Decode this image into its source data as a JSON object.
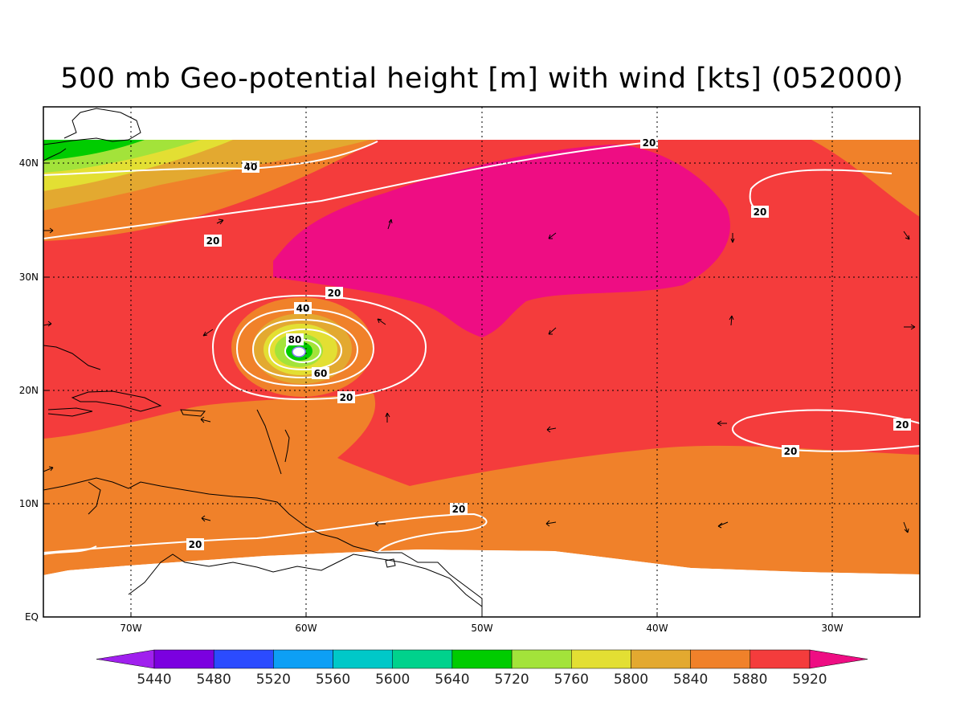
{
  "title": "500 mb Geo-potential height [m] with wind [kts] (052000)",
  "map": {
    "lon_range": [
      -75,
      -25
    ],
    "lat_range": [
      0,
      45
    ],
    "lon_ticks": [
      "70W",
      "60W",
      "50W",
      "40W",
      "30W"
    ],
    "lat_ticks": [
      "EQ",
      "10N",
      "20N",
      "30N",
      "40N"
    ],
    "shading_variable": "500 mb geopotential height",
    "contour_variable": "wind speed",
    "wind_contour_labels": [
      "20",
      "40",
      "20",
      "20",
      "20",
      "20",
      "20",
      "40",
      "80",
      "60",
      "20",
      "20",
      "20"
    ],
    "hurricane_center": "24N 60W",
    "colors": {
      "5920": "#ee0d83",
      "5880": "#f43c3c",
      "5840": "#f0812a",
      "5800": "#e3a930",
      "5760": "#e3df33",
      "5720": "#a3e33a",
      "5640": "#00cc00",
      "background": "#ffffff"
    }
  },
  "colorbar": {
    "labels": [
      "5440",
      "5480",
      "5520",
      "5560",
      "5600",
      "5640",
      "5720",
      "5760",
      "5800",
      "5840",
      "5880",
      "5920"
    ],
    "colors": [
      "#a020ee",
      "#7b00e0",
      "#2b4bff",
      "#0d9ff5",
      "#00c8c8",
      "#00d28c",
      "#00cc00",
      "#a3e33a",
      "#e3df33",
      "#e3a930",
      "#f0812a",
      "#f43c3c",
      "#ee0d83"
    ]
  }
}
